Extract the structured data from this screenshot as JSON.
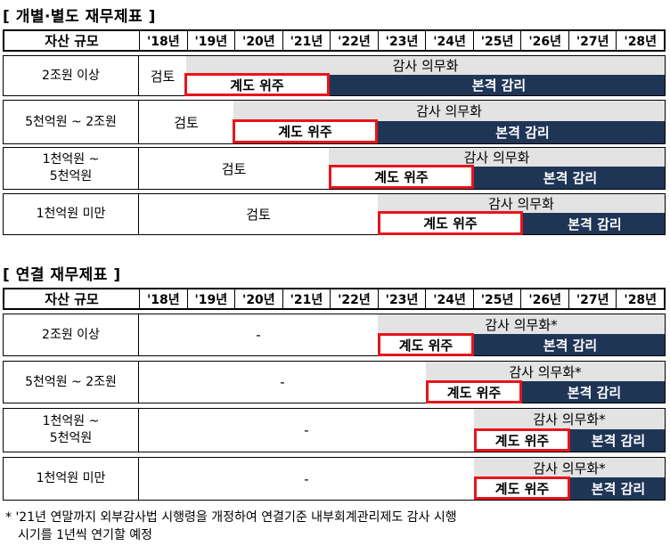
{
  "section1": {
    "title": "[ 개별·별도 재무제표 ]",
    "header": {
      "label": "자산 규모",
      "years": [
        "'18년",
        "'19년",
        "'20년",
        "'21년",
        "'22년",
        "'23년",
        "'24년",
        "'25년",
        "'26년",
        "'27년",
        "'28년"
      ]
    },
    "rows": [
      {
        "label": "2조원 이상",
        "review": "검토",
        "audit": "감사 의무화",
        "phase_in": "계도 위주",
        "full": "본격 감리"
      },
      {
        "label": "5천억원 ~ 2조원",
        "review": "검토",
        "audit": "감사 의무화",
        "phase_in": "계도 위주",
        "full": "본격 감리"
      },
      {
        "label_line1": "1천억원 ~",
        "label_line2": "5천억원",
        "review": "검토",
        "audit": "감사 의무화",
        "phase_in": "계도 위주",
        "full": "본격 감리"
      },
      {
        "label": "1천억원 미만",
        "review": "검토",
        "audit": "감사 의무화",
        "phase_in": "계도 위주",
        "full": "본격 감리"
      }
    ]
  },
  "section2": {
    "title": "[ 연결 재무제표 ]",
    "header": {
      "label": "자산 규모",
      "years": [
        "'18년",
        "'19년",
        "'20년",
        "'21년",
        "'22년",
        "'23년",
        "'24년",
        "'25년",
        "'26년",
        "'27년",
        "'28년"
      ]
    },
    "rows": [
      {
        "label": "2조원 이상",
        "dash": "-",
        "audit": "감사 의무화*",
        "phase_in": "계도 위주",
        "full": "본격 감리"
      },
      {
        "label": "5천억원 ~ 2조원",
        "dash": "-",
        "audit": "감사 의무화*",
        "phase_in": "계도 위주",
        "full": "본격 감리"
      },
      {
        "label_line1": "1천억원 ~",
        "label_line2": "5천억원",
        "dash": "-",
        "audit": "감사 의무화*",
        "phase_in": "계도 위주",
        "full": "본격 감리"
      },
      {
        "label": "1천억원 미만",
        "dash": "-",
        "audit": "감사 의무화*",
        "phase_in": "계도 위주",
        "full": "본격 감리"
      }
    ]
  },
  "footnote": {
    "line1": "* '21년 연말까지 외부감사법 시행령을 개정하여 연결기준 내부회계관리제도 감사 시행",
    "line2": "시기를 1년씩 연기할 예정"
  }
}
